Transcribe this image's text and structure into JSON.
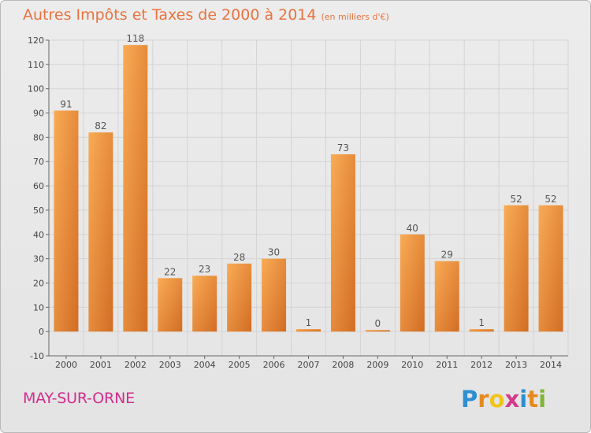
{
  "chart_data": {
    "type": "bar",
    "title": "Autres Impôts et Taxes de 2000 à 2014",
    "subtitle": "(en milliers d'€)",
    "categories": [
      "2000",
      "2001",
      "2002",
      "2003",
      "2004",
      "2005",
      "2006",
      "2007",
      "2008",
      "2009",
      "2010",
      "2011",
      "2012",
      "2013",
      "2014"
    ],
    "values": [
      91,
      82,
      118,
      22,
      23,
      28,
      30,
      1,
      73,
      0,
      40,
      29,
      1,
      52,
      52
    ],
    "ylim": [
      -10,
      120
    ],
    "yticks": [
      -10,
      0,
      10,
      20,
      30,
      40,
      50,
      60,
      70,
      80,
      90,
      100,
      110,
      120
    ],
    "grid": true,
    "bar_color_light": "#f7a64f",
    "bar_color_dark": "#d8742c"
  },
  "footer": {
    "commune": "MAY-SUR-ORNE",
    "logo_text": "Proxiti"
  },
  "colors": {
    "title": "#e8733f",
    "commune": "#cf2e8d",
    "grid": "#d4d4d4"
  }
}
